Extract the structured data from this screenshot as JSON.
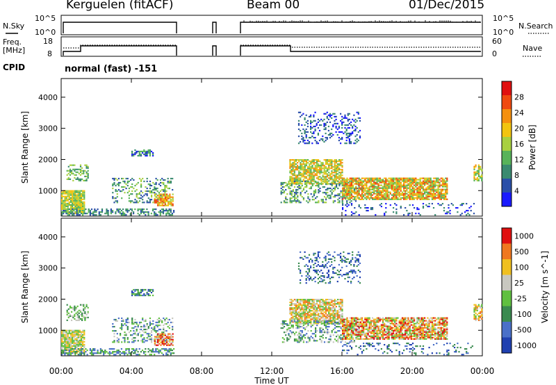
{
  "header": {
    "station": "Kerguelen (fitACF)",
    "beam": "Beam 00",
    "date": "01/Dec/2015"
  },
  "strip1": {
    "left_label": "N.Sky",
    "right_label": "N.Search",
    "left_ticks": [
      "10^5",
      "10^0"
    ],
    "right_ticks": [
      "10^5",
      "10^0"
    ]
  },
  "strip2": {
    "left_label_1": "Freq.",
    "left_label_2": "[MHz]",
    "right_label": "Nave",
    "left_ticks": [
      "18",
      "8"
    ],
    "right_ticks": [
      "60",
      "0"
    ]
  },
  "cpid": {
    "label": "CPID",
    "text": "normal (fast) -151"
  },
  "chart_data": [
    {
      "type": "heatmap",
      "name": "power",
      "ylabel": "Slant Range [km]",
      "ylim": [
        180,
        4600
      ],
      "yticks": [
        1000,
        2000,
        3000,
        4000
      ],
      "colorbar_label": "Power [dB]",
      "colorbar_ticks": [
        4,
        8,
        12,
        16,
        20,
        24,
        28
      ],
      "colorbar_range": [
        0,
        32
      ],
      "colors": [
        "#1a1aff",
        "#2a4fa8",
        "#3a8a70",
        "#58b35a",
        "#a8d040",
        "#f2c410",
        "#f5900f",
        "#f04a10",
        "#e01010"
      ]
    },
    {
      "type": "heatmap",
      "name": "velocity",
      "ylabel": "Slant Range [km]",
      "ylim": [
        180,
        4600
      ],
      "yticks": [
        1000,
        2000,
        3000,
        4000
      ],
      "colorbar_label": "Velocity [m s^-1]",
      "colorbar_ticks": [
        "1000",
        "500",
        "100",
        "25",
        "-25",
        "-100",
        "-500",
        "-1000"
      ],
      "colors": [
        "#2040b0",
        "#4a70c8",
        "#3a8a50",
        "#60c040",
        "#c8c8c0",
        "#f0c020",
        "#f07820",
        "#e01010"
      ]
    }
  ],
  "x_axis": {
    "label": "Time UT",
    "ticks": [
      "00:00",
      "04:00",
      "08:00",
      "12:00",
      "16:00",
      "20:00",
      "00:00"
    ],
    "range_hours": [
      0,
      24
    ]
  }
}
